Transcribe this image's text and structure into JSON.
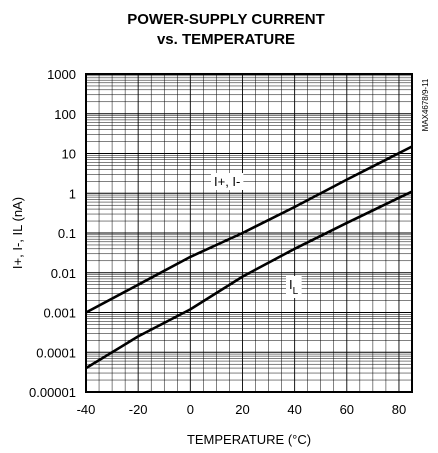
{
  "chart_data": {
    "type": "line",
    "title_line1": "POWER-SUPPLY CURRENT",
    "title_line2": "vs. TEMPERATURE",
    "xlabel": "TEMPERATURE (°C)",
    "ylabel": "I+, I-, IL (nA)",
    "xlim": [
      -40,
      85
    ],
    "ylim": [
      1e-05,
      1000
    ],
    "yscale": "log",
    "grid": true,
    "xticks": [
      -40,
      -20,
      0,
      20,
      40,
      60,
      80
    ],
    "xtick_labels": [
      "-40",
      "-20",
      "0",
      "20",
      "40",
      "60",
      "80"
    ],
    "yticks": [
      1e-05,
      0.0001,
      0.001,
      0.01,
      0.1,
      1,
      10,
      100,
      1000
    ],
    "ytick_labels": [
      "0.00001",
      "0.0001",
      "0.001",
      "0.01",
      "0.1",
      "1",
      "10",
      "100",
      "1000"
    ],
    "part_code": "MAX4678/9-11",
    "series": [
      {
        "name": "I+, I-",
        "label_main": "I+, I-",
        "label_sub": "",
        "x": [
          -40,
          -20,
          0,
          20,
          40,
          60,
          85
        ],
        "y": [
          0.001,
          0.005,
          0.025,
          0.1,
          0.45,
          2.2,
          15
        ]
      },
      {
        "name": "IL",
        "label_main": "I",
        "label_sub": "L",
        "x": [
          -40,
          -20,
          0,
          20,
          40,
          60,
          85
        ],
        "y": [
          4e-05,
          0.00025,
          0.0012,
          0.008,
          0.04,
          0.18,
          1.1
        ]
      }
    ]
  }
}
